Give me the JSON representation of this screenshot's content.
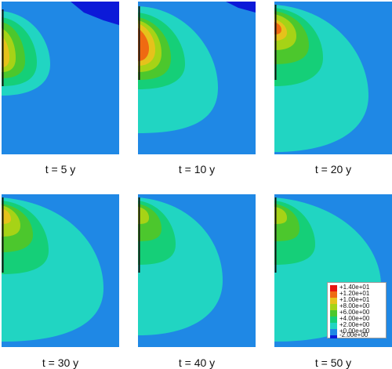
{
  "panels": [
    {
      "caption": "t = 5 y"
    },
    {
      "caption": "t = 10 y"
    },
    {
      "caption": "t = 20 y"
    },
    {
      "caption": "t = 30 y"
    },
    {
      "caption": "t = 40 y"
    },
    {
      "caption": "t = 50 y"
    }
  ],
  "legend": {
    "entries": [
      {
        "label": "+1.40e+01",
        "color": "#e8140f"
      },
      {
        "label": "+1.20e+01",
        "color": "#ef6a12"
      },
      {
        "label": "+1.00e+01",
        "color": "#e6c21b"
      },
      {
        "label": "+8.00e+00",
        "color": "#a6d316"
      },
      {
        "label": "+6.00e+00",
        "color": "#4cc72d"
      },
      {
        "label": "+4.00e+00",
        "color": "#15cf78"
      },
      {
        "label": "+2.00e+00",
        "color": "#21d5c2"
      },
      {
        "label": "+0.00e+00",
        "color": "#1f88e5"
      },
      {
        "label": "-2.00e+00",
        "color": "#0c1ad8"
      }
    ]
  },
  "colors": {
    "background_field": "#1f88e5",
    "contour_2": "#21d5c2",
    "contour_4": "#15cf78",
    "contour_6": "#4cc72d",
    "contour_8": "#a6d316",
    "contour_10": "#e6c21b",
    "contour_12": "#ef6a12",
    "contour_negative": "#0c1ad8",
    "boundary_line": "#111111"
  }
}
